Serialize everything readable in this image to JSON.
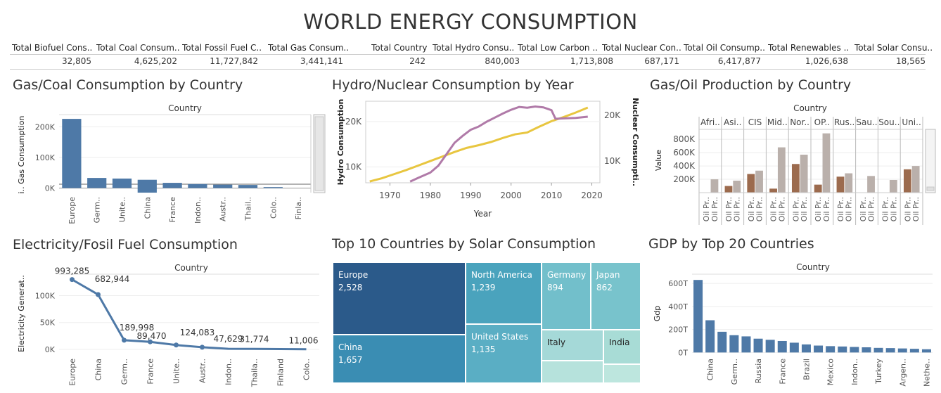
{
  "title": "WORLD ENERGY CONSUMPTION",
  "kpis": [
    {
      "label": "Total Biofuel Cons..",
      "value": "32,805"
    },
    {
      "label": "Total Coal Consum..",
      "value": "4,625,202"
    },
    {
      "label": "Total Fossil Fuel C..",
      "value": "11,727,842"
    },
    {
      "label": "Total Gas Consum..",
      "value": "3,441,141"
    },
    {
      "label": "Total Country",
      "value": "242"
    },
    {
      "label": "Total Hydro Consu..",
      "value": "840,003"
    },
    {
      "label": "Total Low Carbon ..",
      "value": "1,713,808"
    },
    {
      "label": "Total Nuclear Con..",
      "value": "687,171"
    },
    {
      "label": "Total Oil Consump..",
      "value": "6,417,877"
    },
    {
      "label": "Total Renewables ..",
      "value": "1,026,638"
    },
    {
      "label": "Total Solar Consu..",
      "value": "18,565"
    }
  ],
  "colors": {
    "blue": "#4e79a7",
    "gold": "#e8c640",
    "purple": "#b07aa8",
    "taupe": "#bab0ab",
    "brown": "#9c6b4e"
  },
  "panels": {
    "gas_coal": {
      "title": "Gas/Coal Consumption by Country"
    },
    "hydro_nuclear": {
      "title": "Hydro/Nuclear Consumption by Year"
    },
    "gas_oil": {
      "title": "Gas/Oil Production by Country"
    },
    "electricity": {
      "title": "Electricity/Fosil Fuel Consumption"
    },
    "solar": {
      "title": "Top 10 Countries by Solar Consumption"
    },
    "gdp": {
      "title": "GDP by Top 20 Countries"
    }
  },
  "chart_data": [
    {
      "id": "gas_coal",
      "type": "bar",
      "header": "Country",
      "ylabel": "i.. Gas Consumption",
      "categories": [
        "Europe",
        "Germ..",
        "Unite..",
        "China",
        "France",
        "Indon..",
        "Austr..",
        "Thail..",
        "Colo..",
        "Finla.."
      ],
      "values": [
        226000,
        33000,
        31000,
        27000,
        17000,
        13000,
        11000,
        10000,
        3000,
        0
      ],
      "below_values": [
        0,
        0,
        0,
        -12000,
        0,
        0,
        0,
        0,
        0,
        0
      ],
      "yticks": [
        "0K",
        "100K",
        "200K"
      ],
      "ylim": [
        -15000,
        240000
      ]
    },
    {
      "id": "hydro_nuclear",
      "type": "line",
      "xlabel": "Year",
      "ylabel": "Hydro Consumption",
      "y2label": "Nuclear Consumpti..",
      "xticks": [
        "1970",
        "1980",
        "1990",
        "2000",
        "2010",
        "2020"
      ],
      "yticks": [
        "10K",
        "20K"
      ],
      "y2ticks": [
        "10K",
        "20K"
      ],
      "xlim": [
        1964,
        2022
      ],
      "ylim": [
        6500,
        24500
      ],
      "y2lim": [
        4000,
        24000
      ],
      "series": [
        {
          "name": "Hydro",
          "axis": "left",
          "x": [
            1965,
            1968,
            1971,
            1974,
            1977,
            1980,
            1983,
            1986,
            1989,
            1992,
            1995,
            1998,
            2001,
            2004,
            2007,
            2010,
            2013,
            2016,
            2019
          ],
          "values": [
            6800,
            7500,
            8400,
            9300,
            10300,
            11300,
            12300,
            13300,
            14200,
            14800,
            15500,
            16400,
            17200,
            17600,
            18900,
            20100,
            21000,
            22000,
            23100
          ]
        },
        {
          "name": "Nuclear",
          "axis": "right",
          "x": [
            1975,
            1977,
            1980,
            1982,
            1984,
            1986,
            1988,
            1990,
            1992,
            1994,
            1996,
            1998,
            2000,
            2002,
            2004,
            2006,
            2008,
            2010,
            2011,
            2013,
            2016,
            2019
          ],
          "values": [
            4300,
            5200,
            6500,
            8200,
            11000,
            13800,
            15500,
            17000,
            17800,
            19000,
            20000,
            21000,
            21900,
            22600,
            22400,
            22700,
            22500,
            21800,
            19700,
            19800,
            19900,
            20200
          ]
        }
      ]
    },
    {
      "id": "gas_oil",
      "type": "bar",
      "header": "Country",
      "ylabel": "Value",
      "columns": [
        "Afri..",
        "Asi..",
        "CIS",
        "Mid..",
        "Nor..",
        "OP..",
        "Rus..",
        "Sau..",
        "Sou..",
        "Uni.."
      ],
      "bar_labels": [
        "Oil Pr..",
        "Oil Pr.."
      ],
      "values": [
        [
          0,
          200000
        ],
        [
          100000,
          180000
        ],
        [
          280000,
          330000
        ],
        [
          60000,
          680000
        ],
        [
          430000,
          570000
        ],
        [
          120000,
          890000
        ],
        [
          240000,
          290000
        ],
        [
          0,
          250000
        ],
        [
          0,
          190000
        ],
        [
          350000,
          400000
        ]
      ],
      "yticks": [
        "200K",
        "400K",
        "600K",
        "800K"
      ],
      "ylim": [
        0,
        950000
      ]
    },
    {
      "id": "electricity",
      "type": "line",
      "header": "Country",
      "ylabel": "Electricity Generat..",
      "categories": [
        "Europe",
        "China",
        "Germ..",
        "France",
        "Unite..",
        "Austr..",
        "Indon..",
        "Thaila..",
        "Finland",
        "Colo.."
      ],
      "values": [
        130000,
        102000,
        17000,
        14000,
        8000,
        4000,
        1000,
        800,
        500,
        200
      ],
      "point_labels": [
        "993,285",
        "682,944",
        "189,998",
        "89,470",
        "124,083",
        "",
        "47,629",
        "31,774",
        "",
        "11,006"
      ],
      "yticks": [
        "0K",
        "50K",
        "100K"
      ],
      "ylim": [
        -8000,
        140000
      ]
    },
    {
      "id": "solar",
      "type": "treemap",
      "cells": [
        {
          "name": "Europe",
          "value": "2,528"
        },
        {
          "name": "China",
          "value": "1,657"
        },
        {
          "name": "North America",
          "value": "1,239"
        },
        {
          "name": "United States",
          "value": "1,135"
        },
        {
          "name": "Germany",
          "value": "894"
        },
        {
          "name": "Japan",
          "value": "862"
        },
        {
          "name": "Italy",
          "value": ""
        },
        {
          "name": "India",
          "value": ""
        }
      ]
    },
    {
      "id": "gdp",
      "type": "bar",
      "header": "Country",
      "ylabel": "Gdp",
      "categories": [
        "",
        "China",
        "",
        "Germ..",
        "",
        "Russia",
        "",
        "France",
        "",
        "Brazil",
        "",
        "Mexico",
        "",
        "Indon..",
        "",
        "Turkey",
        "",
        "Argen..",
        "",
        "Nethe.."
      ],
      "values": [
        630,
        280,
        180,
        150,
        140,
        120,
        110,
        100,
        85,
        70,
        60,
        55,
        52,
        48,
        45,
        40,
        38,
        35,
        32,
        28
      ],
      "yticks": [
        "0T",
        "200T",
        "400T",
        "600T"
      ],
      "ylim": [
        -10,
        680
      ]
    }
  ]
}
